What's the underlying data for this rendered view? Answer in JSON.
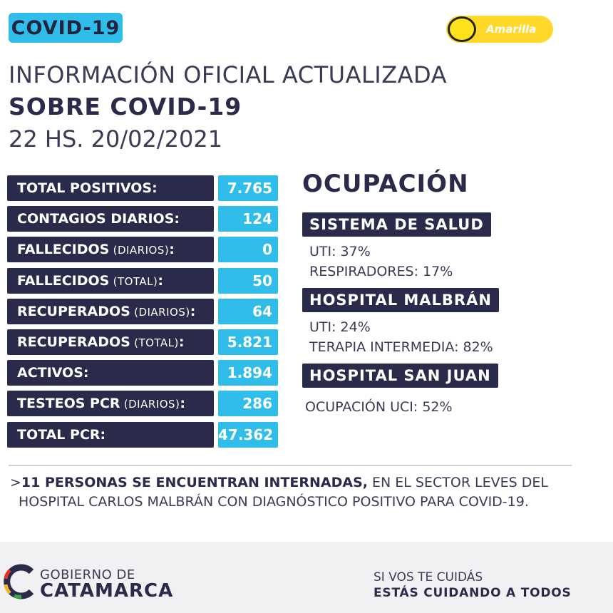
{
  "header": {
    "tag": "COVID-19",
    "phase_label": "Amarilla",
    "title_line1": "INFORMACIÓN OFICIAL ACTUALIZADA",
    "title_line2": "SOBRE COVID-19",
    "date_line": "22 HS. 20/02/2021"
  },
  "stats": [
    {
      "label": "TOTAL POSITIVOS",
      "sub": "",
      "suffix": ":",
      "value": "7.765"
    },
    {
      "label": "CONTAGIOS DIARIOS",
      "sub": "",
      "suffix": ":",
      "value": "124"
    },
    {
      "label": "FALLECIDOS",
      "sub": " (DIARIOS)",
      "suffix": ":",
      "value": "0"
    },
    {
      "label": "FALLECIDOS",
      "sub": " (TOTAL)",
      "suffix": ":",
      "value": "50"
    },
    {
      "label": "RECUPERADOS",
      "sub": " (DIARIOS)",
      "suffix": ":",
      "value": "64"
    },
    {
      "label": "RECUPERADOS",
      "sub": " (TOTAL)",
      "suffix": ":",
      "value": "5.821"
    },
    {
      "label": "ACTIVOS",
      "sub": "",
      "suffix": ":",
      "value": "1.894"
    },
    {
      "label": "TESTEOS PCR",
      "sub": " (DIARIOS)",
      "suffix": ":",
      "value": "286"
    },
    {
      "label": "TOTAL PCR",
      "sub": "",
      "suffix": ":",
      "value": "47.362"
    }
  ],
  "occupancy": {
    "title": "OCUPACIÓN",
    "sistema_salud": {
      "heading": "SISTEMA DE SALUD",
      "line1": "UTI: 37%",
      "line2": "RESPIRADORES: 17%"
    },
    "malbran": {
      "heading": "HOSPITAL MALBRÁN",
      "line1": "UTI: 24%",
      "line2": "TERAPIA INTERMEDIA: 82%"
    },
    "san_juan": {
      "heading": "HOSPITAL SAN JUAN",
      "line1": "OCUPACIÓN UCI: 52%"
    }
  },
  "note": {
    "prefix": ">",
    "bold": "11 PERSONAS SE ENCUENTRAN INTERNADAS,",
    "rest": " EN EL SECTOR LEVES DEL",
    "line2": "HOSPITAL CARLOS MALBRÁN CON DIAGNÓSTICO POSITIVO PARA COVID-19."
  },
  "footer": {
    "gov_line1": "GOBIERNO DE",
    "gov_line2": "CATAMARCA",
    "slogan_line1": "SI VOS TE CUIDÁS",
    "slogan_line2": "ESTÁS CUIDANDO A TODOS"
  },
  "colors": {
    "navy": "#2a2b4a",
    "cyan": "#30bde9",
    "yellow": "#ffd82a"
  }
}
